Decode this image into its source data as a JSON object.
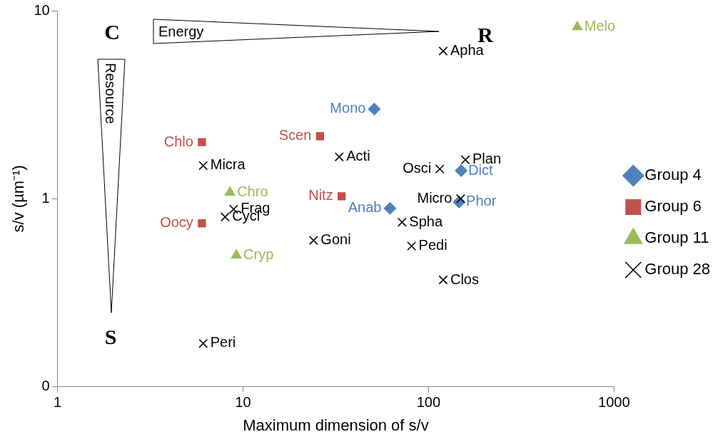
{
  "chart_data": {
    "type": "scatter",
    "xlabel": "Maximum dimension of s/v",
    "ylabel": "s/v (µm⁻¹)",
    "log": "xy",
    "xlim": [
      1,
      1000
    ],
    "xticks": [
      1,
      10,
      100,
      1000
    ],
    "ylim": [
      0.1,
      10
    ],
    "yticks": [
      {
        "value": 0.1,
        "label": "0"
      },
      1,
      10
    ],
    "grid": false,
    "legend": "right",
    "series": [
      {
        "name": "Group 4",
        "color": "#4f81bd",
        "marker": "diamond",
        "x": [
          51,
          150,
          62,
          146
        ],
        "values": [
          3.0,
          1.41,
          0.89,
          0.96
        ]
      },
      {
        "name": "Group 6",
        "color": "#c0504d",
        "marker": "square",
        "x": [
          6,
          26,
          34,
          6
        ],
        "values": [
          2.0,
          2.15,
          1.03,
          0.74
        ]
      },
      {
        "name": "Group 11",
        "color": "#9bbb59",
        "marker": "triangle",
        "x": [
          634,
          8.5,
          9.2
        ],
        "values": [
          8.2,
          1.08,
          0.5
        ]
      },
      {
        "name": "Group 28",
        "color": "#000000",
        "marker": "cross",
        "x": [
          120,
          6.1,
          33,
          115,
          158,
          149,
          8.9,
          8,
          72,
          24,
          81,
          120,
          6.1
        ],
        "values": [
          6.1,
          1.5,
          1.67,
          1.44,
          1.61,
          1.0,
          0.88,
          0.8,
          0.75,
          0.6,
          0.56,
          0.37,
          0.17
        ]
      }
    ],
    "annotations": [
      "C",
      "R",
      "S",
      "Energy",
      "Resource",
      {
        "text": "Mono",
        "x": 51,
        "y": 3.0
      },
      {
        "text": "Dict",
        "x": 150,
        "y": 1.41
      },
      {
        "text": "Anab",
        "x": 62,
        "y": 0.89
      },
      {
        "text": "Phor",
        "x": 146,
        "y": 0.96
      },
      {
        "text": "Chlo",
        "x": 6,
        "y": 2.0
      },
      {
        "text": "Scen",
        "x": 26,
        "y": 2.15
      },
      {
        "text": "Nitz",
        "x": 34,
        "y": 1.03
      },
      {
        "text": "Oocy",
        "x": 6,
        "y": 0.74
      },
      {
        "text": "Melo",
        "x": 634,
        "y": 8.2
      },
      {
        "text": "Chro",
        "x": 8.5,
        "y": 1.08
      },
      {
        "text": "Cryp",
        "x": 9.2,
        "y": 0.5
      },
      {
        "text": "Apha",
        "x": 120,
        "y": 6.1
      },
      {
        "text": "Micra",
        "x": 6.1,
        "y": 1.5
      },
      {
        "text": "Acti",
        "x": 33,
        "y": 1.67
      },
      {
        "text": "Osci",
        "x": 115,
        "y": 1.44
      },
      {
        "text": "Plan",
        "x": 158,
        "y": 1.61
      },
      {
        "text": "Micro",
        "x": 149,
        "y": 1.0
      },
      {
        "text": "Frag",
        "x": 8.9,
        "y": 0.88
      },
      {
        "text": "Cycl",
        "x": 8,
        "y": 0.8
      },
      {
        "text": "Spha",
        "x": 72,
        "y": 0.75
      },
      {
        "text": "Goni",
        "x": 24,
        "y": 0.6
      },
      {
        "text": "Pedi",
        "x": 81,
        "y": 0.56
      },
      {
        "text": "Clos",
        "x": 120,
        "y": 0.37
      },
      {
        "text": "Peri",
        "x": 6.1,
        "y": 0.17
      }
    ]
  }
}
